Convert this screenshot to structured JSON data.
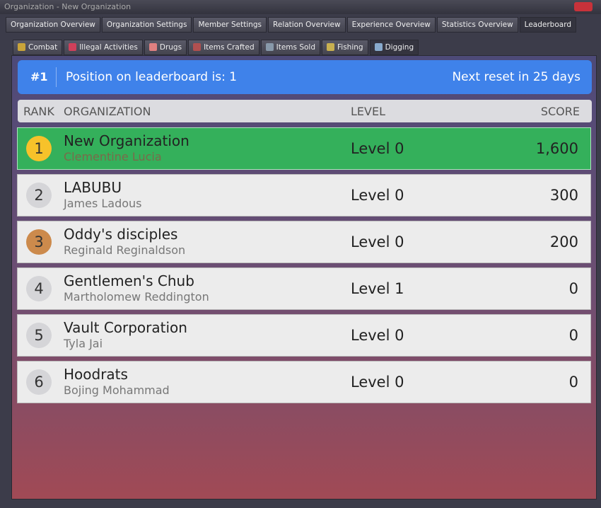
{
  "window": {
    "title": "Organization - New Organization"
  },
  "tabs": [
    "Organization Overview",
    "Organization Settings",
    "Member Settings",
    "Relation Overview",
    "Experience Overview",
    "Statistics Overview",
    "Leaderboard"
  ],
  "subtabs": [
    "Combat",
    "Illegal Activities",
    "Drugs",
    "Items Crafted",
    "Items Sold",
    "Fishing",
    "Digging"
  ],
  "banner": {
    "rank": "#1",
    "position": "Position on leaderboard is: 1",
    "reset": "Next reset in 25 days"
  },
  "table": {
    "headers": [
      "RANK",
      "ORGANIZATION",
      "LEVEL",
      "SCORE"
    ],
    "rows": [
      {
        "rank": "1",
        "name": "New Organization",
        "leader": "Clementine Lucia",
        "level": "Level 0",
        "score": "1,600"
      },
      {
        "rank": "2",
        "name": "LABUBU",
        "leader": "James Ladous",
        "level": "Level 0",
        "score": "300"
      },
      {
        "rank": "3",
        "name": "Oddy's disciples",
        "leader": "Reginald Reginaldson",
        "level": "Level 0",
        "score": "200"
      },
      {
        "rank": "4",
        "name": "Gentlemen's Chub",
        "leader": "Martholomew Reddington",
        "level": "Level 1",
        "score": "0"
      },
      {
        "rank": "5",
        "name": "Vault Corporation",
        "leader": "Tyla Jai",
        "level": "Level 0",
        "score": "0"
      },
      {
        "rank": "6",
        "name": "Hoodrats",
        "leader": "Bojing Mohammad",
        "level": "Level 0",
        "score": "0"
      }
    ]
  }
}
